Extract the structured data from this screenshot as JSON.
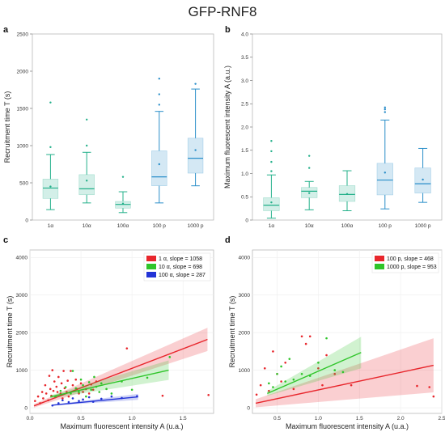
{
  "figure_title": "GFP-RNF8",
  "chart_data": [
    {
      "panel": "a",
      "type": "box",
      "ylabel": "Recruitment time T (s)",
      "ylim": [
        0,
        2500
      ],
      "yticks": [
        0,
        500,
        1000,
        1500,
        2000,
        2500
      ],
      "categories": [
        "1α",
        "10α",
        "100α",
        "100 p",
        "1000 p"
      ],
      "boxes": [
        {
          "whisker_low": 140,
          "q1": 290,
          "median": 430,
          "q3": 550,
          "whisker_high": 880,
          "mean": 450,
          "outliers": [
            980,
            1580
          ],
          "color": "#23b08a"
        },
        {
          "whisker_low": 230,
          "q1": 340,
          "median": 420,
          "q3": 610,
          "whisker_high": 910,
          "mean": 530,
          "outliers": [
            1000,
            1350
          ],
          "color": "#23b08a"
        },
        {
          "whisker_low": 100,
          "q1": 160,
          "median": 210,
          "q3": 250,
          "whisker_high": 380,
          "mean": 220,
          "outliers": [
            580
          ],
          "color": "#23b08a"
        },
        {
          "whisker_low": 230,
          "q1": 460,
          "median": 580,
          "q3": 930,
          "whisker_high": 1460,
          "mean": 750,
          "outliers": [
            1550,
            1690,
            1900
          ],
          "color": "#2a8ec9"
        },
        {
          "whisker_low": 460,
          "q1": 630,
          "median": 830,
          "q3": 1100,
          "whisker_high": 1760,
          "mean": 940,
          "outliers": [
            1830
          ],
          "color": "#2a8ec9"
        }
      ]
    },
    {
      "panel": "b",
      "type": "box",
      "ylabel": "Maximum fluorescent intensity A (a.u.)",
      "ylim": [
        0,
        4.0
      ],
      "yticks": [
        "0",
        "0.5",
        "1.0",
        "1.5",
        "2.0",
        "2.5",
        "3.0",
        "3.5",
        "4.0"
      ],
      "categories": [
        "1α",
        "10α",
        "100α",
        "100 p",
        "1000 p"
      ],
      "boxes": [
        {
          "whisker_low": 0.04,
          "q1": 0.2,
          "median": 0.32,
          "q3": 0.48,
          "whisker_high": 0.97,
          "mean": 0.38,
          "outliers": [
            1.05,
            1.25,
            1.48,
            1.7
          ],
          "color": "#23b08a"
        },
        {
          "whisker_low": 0.22,
          "q1": 0.48,
          "median": 0.62,
          "q3": 0.7,
          "whisker_high": 0.83,
          "mean": 0.58,
          "outliers": [
            1.12,
            1.38
          ],
          "color": "#23b08a"
        },
        {
          "whisker_low": 0.2,
          "q1": 0.4,
          "median": 0.55,
          "q3": 0.74,
          "whisker_high": 1.06,
          "mean": 0.56,
          "outliers": [],
          "color": "#23b08a"
        },
        {
          "whisker_low": 0.24,
          "q1": 0.54,
          "median": 0.86,
          "q3": 1.22,
          "whisker_high": 2.15,
          "mean": 1.02,
          "outliers": [
            2.32,
            2.38,
            2.42
          ],
          "color": "#2a8ec9"
        },
        {
          "whisker_low": 0.38,
          "q1": 0.58,
          "median": 0.78,
          "q3": 1.12,
          "whisker_high": 1.54,
          "mean": 0.87,
          "outliers": [],
          "color": "#2a8ec9"
        }
      ]
    },
    {
      "panel": "c",
      "type": "scatter",
      "xlabel": "Maximum fluorescent intensity A (u.a.)",
      "ylabel": "Recruitment time T (s)",
      "xlim": [
        0,
        1.8
      ],
      "ylim": [
        -150,
        4200
      ],
      "xticks": [
        "0.0",
        "0.5",
        "1.0",
        "1.5"
      ],
      "yticks": [
        0,
        1000,
        2000,
        3000,
        4000
      ],
      "legend_position": "top-right",
      "series": [
        {
          "name": "1 α, slope = 1058",
          "color": "#e8262c",
          "fit": {
            "x0": 0.04,
            "y0": 50,
            "x1": 1.74,
            "y1": 1820
          },
          "band_halfwidth_at_end": 310,
          "points": [
            [
              0.05,
              180
            ],
            [
              0.08,
              300
            ],
            [
              0.1,
              120
            ],
            [
              0.12,
              420
            ],
            [
              0.13,
              250
            ],
            [
              0.15,
              600
            ],
            [
              0.16,
              380
            ],
            [
              0.18,
              200
            ],
            [
              0.19,
              850
            ],
            [
              0.2,
              500
            ],
            [
              0.21,
              320
            ],
            [
              0.22,
              1000
            ],
            [
              0.23,
              450
            ],
            [
              0.24,
              700
            ],
            [
              0.25,
              280
            ],
            [
              0.26,
              560
            ],
            [
              0.27,
              420
            ],
            [
              0.28,
              820
            ],
            [
              0.3,
              380
            ],
            [
              0.31,
              650
            ],
            [
              0.32,
              250
            ],
            [
              0.33,
              980
            ],
            [
              0.34,
              520
            ],
            [
              0.36,
              420
            ],
            [
              0.37,
              720
            ],
            [
              0.38,
              300
            ],
            [
              0.4,
              980
            ],
            [
              0.42,
              600
            ],
            [
              0.44,
              450
            ],
            [
              0.45,
              750
            ],
            [
              0.46,
              500
            ],
            [
              0.48,
              380
            ],
            [
              0.5,
              650
            ],
            [
              0.52,
              420
            ],
            [
              0.55,
              500
            ],
            [
              0.58,
              380
            ],
            [
              0.6,
              620
            ],
            [
              0.62,
              480
            ],
            [
              0.65,
              700
            ],
            [
              0.95,
              1580
            ],
            [
              1.3,
              320
            ],
            [
              1.75,
              340
            ]
          ]
        },
        {
          "name": "10 α, slope = 698",
          "color": "#2fc52a",
          "fit": {
            "x0": 0.2,
            "y0": 290,
            "x1": 1.36,
            "y1": 1000
          },
          "band_halfwidth_at_end": 260,
          "points": [
            [
              0.25,
              300
            ],
            [
              0.3,
              450
            ],
            [
              0.35,
              550
            ],
            [
              0.4,
              380
            ],
            [
              0.42,
              980
            ],
            [
              0.45,
              520
            ],
            [
              0.48,
              420
            ],
            [
              0.5,
              750
            ],
            [
              0.52,
              600
            ],
            [
              0.55,
              300
            ],
            [
              0.58,
              680
            ],
            [
              0.6,
              480
            ],
            [
              0.63,
              820
            ],
            [
              0.65,
              560
            ],
            [
              0.68,
              420
            ],
            [
              0.7,
              650
            ],
            [
              0.75,
              500
            ],
            [
              0.8,
              380
            ],
            [
              0.9,
              700
            ],
            [
              1.0,
              480
            ],
            [
              1.15,
              800
            ],
            [
              1.37,
              1350
            ]
          ]
        },
        {
          "name": "100 α, slope = 287",
          "color": "#2233d6",
          "fit": {
            "x0": 0.22,
            "y0": 70,
            "x1": 1.06,
            "y1": 290
          },
          "band_halfwidth_at_end": 80,
          "points": [
            [
              0.22,
              60
            ],
            [
              0.28,
              120
            ],
            [
              0.32,
              200
            ],
            [
              0.38,
              150
            ],
            [
              0.42,
              250
            ],
            [
              0.48,
              180
            ],
            [
              0.52,
              220
            ],
            [
              0.58,
              280
            ],
            [
              0.62,
              160
            ],
            [
              0.7,
              240
            ],
            [
              0.8,
              300
            ],
            [
              0.9,
              260
            ],
            [
              1.05,
              310
            ]
          ]
        }
      ]
    },
    {
      "panel": "d",
      "type": "scatter",
      "xlabel": "Maximum fluorescent intensity A (u.a.)",
      "ylabel": "Recruitment time T (s)",
      "xlim": [
        0.2,
        2.5
      ],
      "ylim": [
        -150,
        4200
      ],
      "xticks": [
        "0.5",
        "1.0",
        "1.5",
        "2.0",
        "2.5"
      ],
      "yticks": [
        0,
        1000,
        2000,
        3000,
        4000
      ],
      "legend_position": "top-right",
      "series": [
        {
          "name": "100 p, slope = 468",
          "color": "#e8262c",
          "fit": {
            "x0": 0.24,
            "y0": 120,
            "x1": 2.4,
            "y1": 1130
          },
          "band_halfwidth_at_end": 720,
          "points": [
            [
              0.25,
              350
            ],
            [
              0.3,
              600
            ],
            [
              0.35,
              1050
            ],
            [
              0.4,
              450
            ],
            [
              0.45,
              1500
            ],
            [
              0.5,
              900
            ],
            [
              0.55,
              700
            ],
            [
              0.6,
              1200
            ],
            [
              0.7,
              500
            ],
            [
              0.8,
              1900
            ],
            [
              0.85,
              1700
            ],
            [
              0.9,
              1900
            ],
            [
              1.0,
              1050
            ],
            [
              1.05,
              600
            ],
            [
              1.1,
              1400
            ],
            [
              1.2,
              900
            ],
            [
              1.4,
              600
            ],
            [
              2.2,
              580
            ],
            [
              2.35,
              550
            ],
            [
              2.4,
              300
            ]
          ]
        },
        {
          "name": "1000 p, slope = 953",
          "color": "#2fc52a",
          "fit": {
            "x0": 0.38,
            "y0": 380,
            "x1": 1.52,
            "y1": 1470
          },
          "band_halfwidth_at_end": 420,
          "points": [
            [
              0.4,
              650
            ],
            [
              0.45,
              550
            ],
            [
              0.5,
              900
            ],
            [
              0.55,
              1100
            ],
            [
              0.6,
              700
            ],
            [
              0.65,
              1300
            ],
            [
              0.7,
              750
            ],
            [
              0.8,
              900
            ],
            [
              0.9,
              850
            ],
            [
              1.0,
              1200
            ],
            [
              1.1,
              1850
            ],
            [
              1.2,
              1000
            ],
            [
              1.3,
              950
            ]
          ]
        }
      ]
    }
  ]
}
